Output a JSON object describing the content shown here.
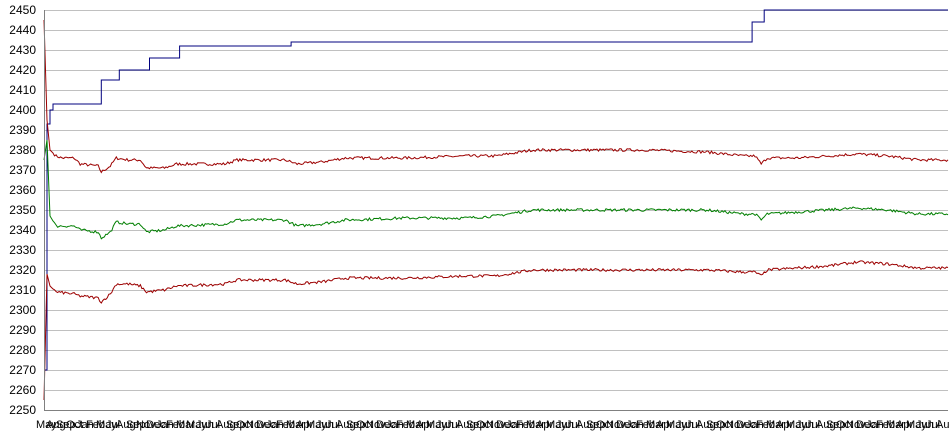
{
  "chart_data": {
    "type": "line",
    "title": "",
    "xlabel": "",
    "ylabel": "",
    "ylim": [
      2250,
      2450
    ],
    "yticks": [
      2250,
      2260,
      2270,
      2280,
      2290,
      2300,
      2310,
      2320,
      2330,
      2340,
      2350,
      2360,
      2370,
      2380,
      2390,
      2400,
      2410,
      2420,
      2430,
      2440,
      2450
    ],
    "grid": true,
    "legend": "none",
    "x_tick_labels": [
      "May",
      "Aug",
      "Sep",
      "Oct",
      "Jan",
      "Feb",
      "May",
      "Jul",
      "Aug",
      "Sep",
      "Nov",
      "Dec",
      "Jan",
      "Feb",
      "Mar",
      "May",
      "Jun",
      "Jul",
      "Aug",
      "Sep",
      "Oct",
      "Nov",
      "Dec",
      "Jan",
      "Feb",
      "Mar",
      "Apr",
      "May",
      "Jun",
      "Jul",
      "Aug",
      "Sep",
      "Oct",
      "Nov",
      "Dec",
      "Jan",
      "Feb",
      "Mar",
      "Apr",
      "May",
      "Jun",
      "Jul",
      "Aug",
      "Sep",
      "Oct",
      "Nov",
      "Dec",
      "Jan",
      "Feb",
      "Mar",
      "Apr",
      "May",
      "Jun",
      "Jul",
      "Aug",
      "Sep",
      "Oct",
      "Nov",
      "Dec",
      "Jan",
      "Feb",
      "Mar",
      "Apr",
      "May",
      "Jun",
      "Jul",
      "Aug",
      "Sep",
      "Oct",
      "Nov",
      "Dec",
      "Jan",
      "Feb",
      "Mar",
      "Apr",
      "May",
      "Jun",
      "Jul",
      "Aug",
      "Sep",
      "Oct",
      "Nov",
      "Dec",
      "Jan",
      "Feb",
      "Mar",
      "Apr",
      "May",
      "Jun",
      "Jul",
      "Aug"
    ],
    "x_points": 300,
    "series": [
      {
        "color": "#00007f",
        "style": "step",
        "points": [
          [
            0,
            2270
          ],
          [
            1,
            2393
          ],
          [
            2,
            2400
          ],
          [
            3,
            2403
          ],
          [
            18,
            2403
          ],
          [
            19,
            2415
          ],
          [
            24,
            2415
          ],
          [
            25,
            2420
          ],
          [
            34,
            2420
          ],
          [
            35,
            2426
          ],
          [
            44,
            2426
          ],
          [
            45,
            2432
          ],
          [
            81,
            2432
          ],
          [
            82,
            2434
          ],
          [
            234,
            2434
          ],
          [
            235,
            2444
          ],
          [
            238,
            2444
          ],
          [
            239,
            2450
          ],
          [
            300,
            2450
          ]
        ]
      },
      {
        "color": "#9c0000",
        "style": "jagged",
        "points": [
          [
            0,
            2445
          ],
          [
            1,
            2395
          ],
          [
            2,
            2380
          ],
          [
            4,
            2377
          ],
          [
            6,
            2376
          ],
          [
            10,
            2376
          ],
          [
            12,
            2373
          ],
          [
            18,
            2372
          ],
          [
            19,
            2369
          ],
          [
            22,
            2372
          ],
          [
            24,
            2376
          ],
          [
            28,
            2375
          ],
          [
            32,
            2375
          ],
          [
            34,
            2371
          ],
          [
            40,
            2371
          ],
          [
            44,
            2373
          ],
          [
            60,
            2373
          ],
          [
            64,
            2375
          ],
          [
            80,
            2375
          ],
          [
            84,
            2373
          ],
          [
            92,
            2374
          ],
          [
            100,
            2376
          ],
          [
            120,
            2376
          ],
          [
            140,
            2377
          ],
          [
            150,
            2377
          ],
          [
            158,
            2379
          ],
          [
            162,
            2380
          ],
          [
            200,
            2380
          ],
          [
            220,
            2379
          ],
          [
            232,
            2377
          ],
          [
            236,
            2377
          ],
          [
            238,
            2373
          ],
          [
            240,
            2376
          ],
          [
            250,
            2376
          ],
          [
            260,
            2377
          ],
          [
            270,
            2378
          ],
          [
            280,
            2377
          ],
          [
            290,
            2375
          ],
          [
            300,
            2375
          ]
        ]
      },
      {
        "color": "#007f00",
        "style": "jagged",
        "points": [
          [
            0,
            2375
          ],
          [
            1,
            2385
          ],
          [
            2,
            2347
          ],
          [
            4,
            2342
          ],
          [
            10,
            2342
          ],
          [
            12,
            2340
          ],
          [
            18,
            2339
          ],
          [
            19,
            2336
          ],
          [
            22,
            2339
          ],
          [
            24,
            2344
          ],
          [
            28,
            2343
          ],
          [
            32,
            2343
          ],
          [
            34,
            2339
          ],
          [
            40,
            2340
          ],
          [
            44,
            2342
          ],
          [
            60,
            2343
          ],
          [
            64,
            2345
          ],
          [
            80,
            2345
          ],
          [
            84,
            2342
          ],
          [
            92,
            2343
          ],
          [
            100,
            2345
          ],
          [
            120,
            2346
          ],
          [
            140,
            2346
          ],
          [
            150,
            2347
          ],
          [
            158,
            2349
          ],
          [
            162,
            2350
          ],
          [
            200,
            2350
          ],
          [
            220,
            2350
          ],
          [
            232,
            2348
          ],
          [
            236,
            2348
          ],
          [
            238,
            2345
          ],
          [
            240,
            2348
          ],
          [
            250,
            2349
          ],
          [
            260,
            2350
          ],
          [
            270,
            2351
          ],
          [
            280,
            2350
          ],
          [
            290,
            2348
          ],
          [
            300,
            2348
          ]
        ]
      },
      {
        "color": "#9c0000",
        "style": "jagged",
        "points": [
          [
            0,
            2255
          ],
          [
            1,
            2318
          ],
          [
            2,
            2312
          ],
          [
            4,
            2309
          ],
          [
            10,
            2308
          ],
          [
            12,
            2307
          ],
          [
            18,
            2306
          ],
          [
            19,
            2304
          ],
          [
            22,
            2308
          ],
          [
            24,
            2313
          ],
          [
            28,
            2313
          ],
          [
            32,
            2312
          ],
          [
            34,
            2309
          ],
          [
            40,
            2310
          ],
          [
            44,
            2312
          ],
          [
            60,
            2313
          ],
          [
            64,
            2315
          ],
          [
            80,
            2315
          ],
          [
            84,
            2313
          ],
          [
            92,
            2314
          ],
          [
            100,
            2316
          ],
          [
            120,
            2316
          ],
          [
            140,
            2317
          ],
          [
            150,
            2317
          ],
          [
            158,
            2319
          ],
          [
            162,
            2320
          ],
          [
            200,
            2320
          ],
          [
            220,
            2320
          ],
          [
            232,
            2319
          ],
          [
            236,
            2319
          ],
          [
            238,
            2317
          ],
          [
            240,
            2320
          ],
          [
            250,
            2321
          ],
          [
            260,
            2322
          ],
          [
            270,
            2324
          ],
          [
            280,
            2323
          ],
          [
            290,
            2321
          ],
          [
            300,
            2321
          ]
        ]
      }
    ]
  }
}
